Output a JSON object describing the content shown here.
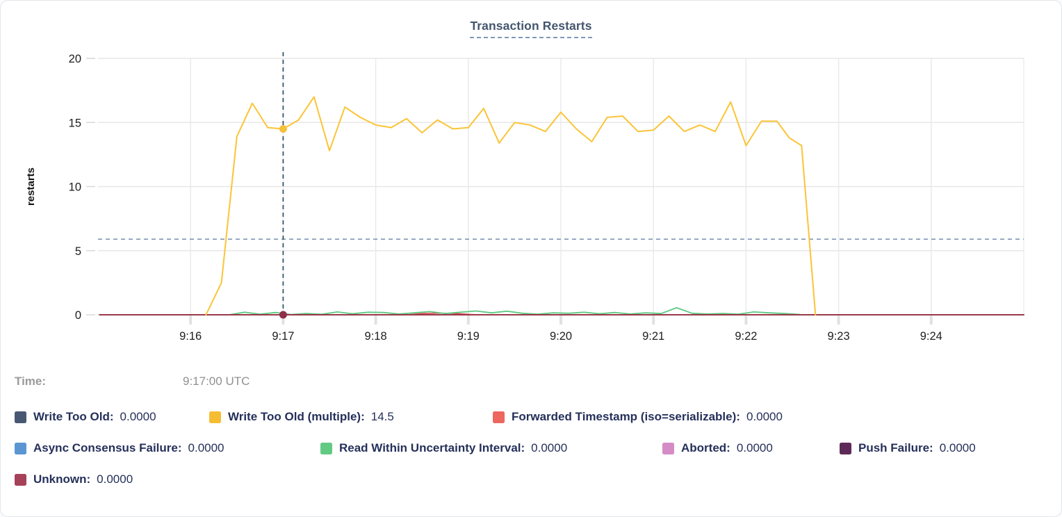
{
  "title": "Transaction Restarts",
  "time_row": {
    "label": "Time:",
    "value": "9:17:00 UTC"
  },
  "legend": {
    "rows": [
      [
        {
          "label": "Write Too Old:",
          "value": "0.0000",
          "color": "#475872"
        },
        {
          "label": "Write Too Old (multiple):",
          "value": "14.5",
          "color": "#f5bd32"
        },
        {
          "label": "Forwarded Timestamp (iso=serializable):",
          "value": "0.0000",
          "color": "#ed665f"
        }
      ],
      [
        {
          "label": "Async Consensus Failure:",
          "value": "0.0000",
          "color": "#5b96d2"
        },
        {
          "label": "Read Within Uncertainty Interval:",
          "value": "0.0000",
          "color": "#63ca83"
        },
        {
          "label": "Aborted:",
          "value": "0.0000",
          "color": "#d58cc6"
        },
        {
          "label": "Push Failure:",
          "value": "0.0000",
          "color": "#5d2a57"
        }
      ],
      [
        {
          "label": "Unknown:",
          "value": "0.0000",
          "color": "#a5425a"
        }
      ]
    ]
  },
  "chart_data": {
    "type": "line",
    "title": "Transaction Restarts",
    "xlabel": "",
    "ylabel": "restarts",
    "ylim": [
      0,
      20
    ],
    "y_ticks": [
      0,
      5,
      10,
      15,
      20
    ],
    "grid": true,
    "x_domain_seconds": [
      0,
      600
    ],
    "x_ticks": [
      {
        "t": 60,
        "label": "9:16"
      },
      {
        "t": 120,
        "label": "9:17"
      },
      {
        "t": 180,
        "label": "9:18"
      },
      {
        "t": 240,
        "label": "9:19"
      },
      {
        "t": 300,
        "label": "9:20"
      },
      {
        "t": 360,
        "label": "9:21"
      },
      {
        "t": 420,
        "label": "9:22"
      },
      {
        "t": 480,
        "label": "9:23"
      },
      {
        "t": 540,
        "label": "9:24"
      }
    ],
    "threshold_line": {
      "value": 5.9,
      "color": "#7f97b5"
    },
    "crosshair": {
      "t": 120,
      "time_label": "9:17:00 UTC",
      "color": "#35576b",
      "dots": [
        {
          "series": "Write Too Old (multiple)",
          "value": 14.5,
          "color": "#f5c03a"
        },
        {
          "series": "Unknown",
          "value": 0,
          "color": "#8e3049"
        }
      ]
    },
    "series": [
      {
        "name": "Forwarded Timestamp (iso=serializable)",
        "color": "#d9484f",
        "stroke_width": 1.6,
        "points": [
          [
            85,
            0
          ],
          [
            200,
            0
          ],
          [
            210,
            0.1
          ],
          [
            222,
            0.13
          ],
          [
            232,
            0.1
          ],
          [
            242,
            0.02
          ],
          [
            250,
            0
          ],
          [
            455,
            0
          ]
        ]
      },
      {
        "name": "Read Within Uncertainty Interval",
        "color": "#5dc981",
        "stroke_width": 1.8,
        "points": [
          [
            85,
            0
          ],
          [
            95,
            0.2
          ],
          [
            105,
            0.05
          ],
          [
            115,
            0.18
          ],
          [
            125,
            0.02
          ],
          [
            135,
            0.1
          ],
          [
            145,
            0.04
          ],
          [
            155,
            0.22
          ],
          [
            165,
            0.08
          ],
          [
            175,
            0.2
          ],
          [
            185,
            0.18
          ],
          [
            195,
            0.06
          ],
          [
            205,
            0.15
          ],
          [
            215,
            0.25
          ],
          [
            225,
            0.1
          ],
          [
            235,
            0.2
          ],
          [
            245,
            0.3
          ],
          [
            255,
            0.15
          ],
          [
            265,
            0.28
          ],
          [
            275,
            0.12
          ],
          [
            285,
            0.05
          ],
          [
            295,
            0.15
          ],
          [
            305,
            0.12
          ],
          [
            315,
            0.2
          ],
          [
            325,
            0.08
          ],
          [
            335,
            0.18
          ],
          [
            345,
            0.06
          ],
          [
            355,
            0.15
          ],
          [
            365,
            0.1
          ],
          [
            375,
            0.55
          ],
          [
            385,
            0.12
          ],
          [
            395,
            0.06
          ],
          [
            405,
            0.1
          ],
          [
            415,
            0.05
          ],
          [
            425,
            0.22
          ],
          [
            435,
            0.15
          ],
          [
            445,
            0.1
          ],
          [
            455,
            0.02
          ]
        ]
      },
      {
        "name": "Unknown",
        "color": "#9c3848",
        "stroke_width": 2,
        "points": [
          [
            1,
            0
          ],
          [
            600,
            0
          ]
        ]
      },
      {
        "name": "Write Too Old (multiple)",
        "color": "#fbc437",
        "stroke_width": 2,
        "points": [
          [
            70,
            0
          ],
          [
            80,
            2.5
          ],
          [
            90,
            13.9
          ],
          [
            100,
            16.5
          ],
          [
            110,
            14.6
          ],
          [
            120,
            14.5
          ],
          [
            130,
            15.2
          ],
          [
            140,
            17.0
          ],
          [
            150,
            12.8
          ],
          [
            160,
            16.2
          ],
          [
            170,
            15.4
          ],
          [
            180,
            14.8
          ],
          [
            190,
            14.6
          ],
          [
            200,
            15.3
          ],
          [
            210,
            14.2
          ],
          [
            220,
            15.2
          ],
          [
            230,
            14.5
          ],
          [
            240,
            14.6
          ],
          [
            250,
            16.1
          ],
          [
            260,
            13.4
          ],
          [
            270,
            15.0
          ],
          [
            280,
            14.8
          ],
          [
            290,
            14.3
          ],
          [
            300,
            15.8
          ],
          [
            310,
            14.5
          ],
          [
            320,
            13.5
          ],
          [
            330,
            15.4
          ],
          [
            340,
            15.5
          ],
          [
            350,
            14.3
          ],
          [
            360,
            14.4
          ],
          [
            370,
            15.5
          ],
          [
            380,
            14.3
          ],
          [
            390,
            14.8
          ],
          [
            400,
            14.3
          ],
          [
            410,
            16.6
          ],
          [
            420,
            13.2
          ],
          [
            430,
            15.1
          ],
          [
            440,
            15.1
          ],
          [
            448,
            13.8
          ],
          [
            456,
            13.2
          ],
          [
            465,
            0
          ]
        ]
      }
    ],
    "legend_position": "bottom"
  }
}
